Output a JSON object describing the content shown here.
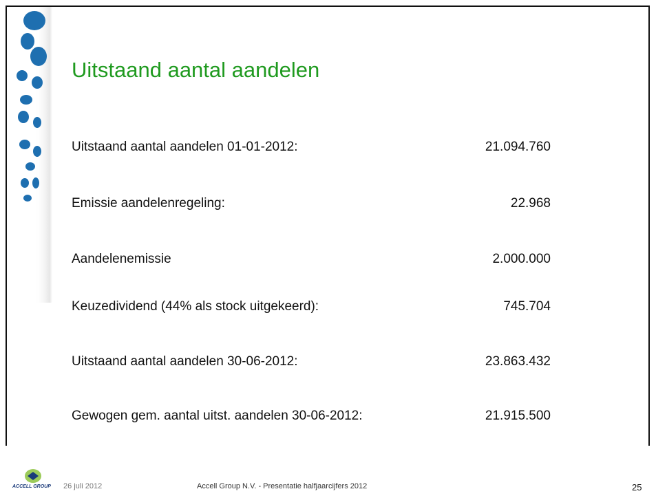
{
  "title": "Uitstaand aantal aandelen",
  "rows": [
    {
      "label": "Uitstaand aantal aandelen 01-01-2012:",
      "value": "21.094.760"
    },
    {
      "label": "Emissie aandelenregeling:",
      "value": "22.968"
    },
    {
      "label": "Aandelenemissie",
      "value": "2.000.000"
    },
    {
      "label": "Keuzedividend (44% als stock uitgekeerd):",
      "value": "745.704"
    },
    {
      "label": "Uitstaand aantal aandelen 30-06-2012:",
      "value": "23.863.432"
    },
    {
      "label": "Gewogen gem. aantal uitst. aandelen 30-06-2012:",
      "value": "21.915.500"
    }
  ],
  "footer": {
    "logo": "ACCELL GROUP",
    "date": "26 juli 2012",
    "center": "Accell Group N.V. - Presentatie halfjaarcijfers 2012",
    "page": "25"
  }
}
